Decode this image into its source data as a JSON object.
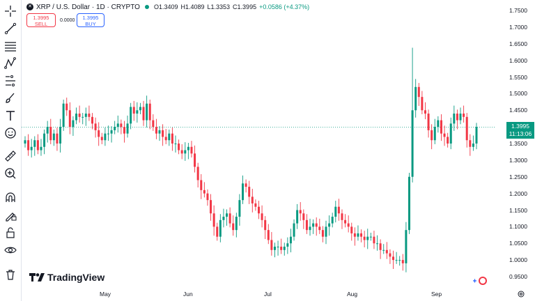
{
  "legend": {
    "symbol": "XRP / U.S. Dollar · 1D · CRYPTO",
    "open": "O1.3409",
    "high": "H1.4089",
    "low": "L1.3353",
    "close": "C1.3995",
    "change": "+0.0586 (+4.37%)"
  },
  "trade": {
    "sell_price": "1.3995",
    "sell_label": "SELL",
    "spread": "0.0000",
    "buy_price": "1.3995",
    "buy_label": "BUY"
  },
  "last_price": {
    "price": "1.3995",
    "countdown": "11:13:06"
  },
  "brand": {
    "name": "TradingView"
  },
  "colors": {
    "up": "#089981",
    "down": "#f23645",
    "axis_text": "#131722",
    "border": "#e0e3eb"
  },
  "toolbar_icons": [
    "crosshair-icon",
    "trend-line-icon",
    "fib-retracement-icon",
    "pattern-icon",
    "forecast-icon",
    "brush-icon",
    "text-icon",
    "emoji-icon",
    "ruler-icon",
    "zoom-in-icon",
    "magnet-icon",
    "lock-drawing-icon",
    "unlock-icon",
    "eye-icon",
    "trash-icon"
  ],
  "chart_data": {
    "type": "candlestick",
    "symbol": "XRP / U.S. Dollar",
    "interval": "1D",
    "price_ticks": [
      "1.7500",
      "1.7000",
      "1.6500",
      "1.6000",
      "1.5500",
      "1.5000",
      "1.4500",
      "1.4000",
      "1.3500",
      "1.3000",
      "1.2500",
      "1.2000",
      "1.1500",
      "1.1000",
      "1.0500",
      "1.0000",
      "0.9500"
    ],
    "time_ticks": [
      "May",
      "Jun",
      "Jul",
      "Aug",
      "Sep"
    ],
    "ylim": [
      0.93,
      1.77
    ],
    "last_close": 1.3995,
    "closes": [
      1.36,
      1.33,
      1.34,
      1.36,
      1.33,
      1.34,
      1.38,
      1.4,
      1.36,
      1.38,
      1.35,
      1.4,
      1.47,
      1.45,
      1.4,
      1.42,
      1.44,
      1.43,
      1.43,
      1.44,
      1.43,
      1.41,
      1.39,
      1.37,
      1.36,
      1.38,
      1.38,
      1.39,
      1.4,
      1.41,
      1.4,
      1.38,
      1.41,
      1.46,
      1.44,
      1.45,
      1.46,
      1.42,
      1.47,
      1.42,
      1.4,
      1.38,
      1.39,
      1.37,
      1.36,
      1.38,
      1.35,
      1.35,
      1.33,
      1.32,
      1.33,
      1.34,
      1.32,
      1.28,
      1.24,
      1.21,
      1.2,
      1.18,
      1.14,
      1.1,
      1.07,
      1.12,
      1.13,
      1.14,
      1.11,
      1.09,
      1.13,
      1.18,
      1.23,
      1.22,
      1.19,
      1.17,
      1.16,
      1.14,
      1.12,
      1.09,
      1.06,
      1.03,
      1.04,
      1.04,
      1.03,
      1.04,
      1.05,
      1.07,
      1.11,
      1.15,
      1.14,
      1.12,
      1.09,
      1.1,
      1.11,
      1.1,
      1.09,
      1.07,
      1.1,
      1.11,
      1.13,
      1.16,
      1.14,
      1.12,
      1.11,
      1.1,
      1.08,
      1.07,
      1.08,
      1.07,
      1.06,
      1.07,
      1.07,
      1.05,
      1.05,
      1.03,
      1.03,
      1.02,
      1.01,
      1.0,
      1.0,
      1.0,
      0.99,
      1.09,
      1.25,
      1.45,
      1.52,
      1.49,
      1.45,
      1.44,
      1.39,
      1.36,
      1.4,
      1.42,
      1.38,
      1.37,
      1.35,
      1.41,
      1.44,
      1.42,
      1.44,
      1.43,
      1.36,
      1.34,
      1.35,
      1.4
    ]
  }
}
